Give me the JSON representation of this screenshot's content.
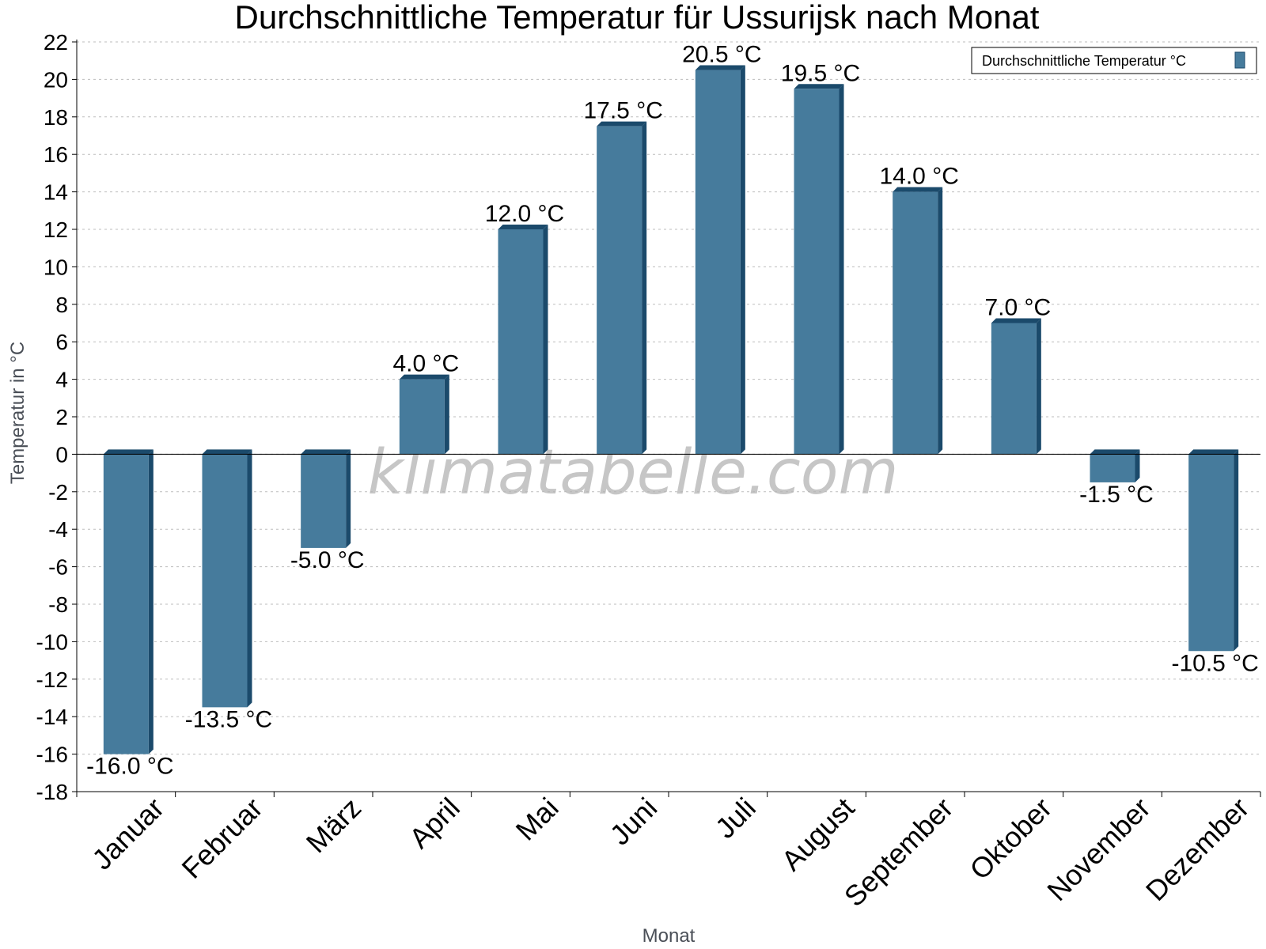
{
  "chart_data": {
    "type": "bar",
    "title": "Durchschnittliche Temperatur für Ussurijsk nach Monat",
    "xlabel": "Monat",
    "ylabel": "Temperatur in °C",
    "ylim": [
      -18,
      22
    ],
    "ytick_step": 2,
    "grid": true,
    "legend_position": "top-right",
    "watermark": "klimatabelle.com",
    "categories": [
      "Januar",
      "Februar",
      "März",
      "April",
      "Mai",
      "Juni",
      "Juli",
      "August",
      "September",
      "Oktober",
      "November",
      "Dezember"
    ],
    "series": [
      {
        "name": "Durchschnittliche Temperatur °C",
        "color": "#467b9c",
        "values": [
          -16.0,
          -13.5,
          -5.0,
          4.0,
          12.0,
          17.5,
          20.5,
          19.5,
          14.0,
          7.0,
          -1.5,
          -10.5
        ],
        "labels": [
          "-16.0 °C",
          "-13.5 °C",
          "-5.0 °C",
          "4.0 °C",
          "12.0 °C",
          "17.5 °C",
          "20.5 °C",
          "19.5 °C",
          "14.0 °C",
          "7.0 °C",
          "-1.5 °C",
          "-10.5 °C"
        ]
      }
    ]
  }
}
